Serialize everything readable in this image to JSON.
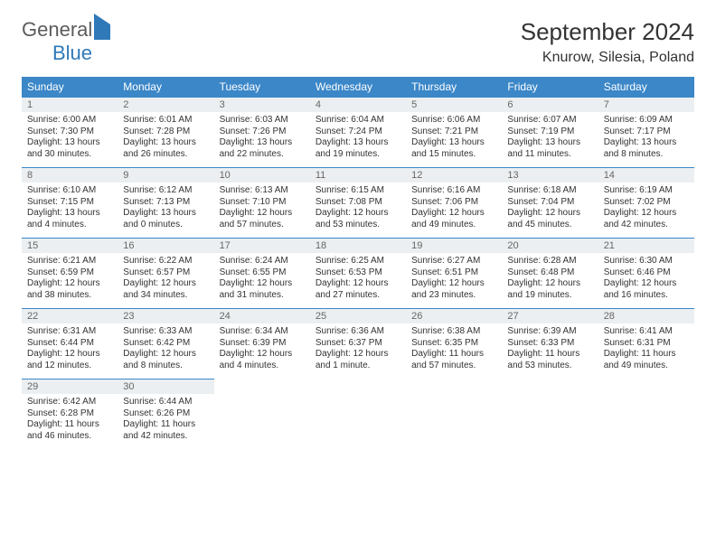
{
  "logo": {
    "part1": "General",
    "part2": "Blue"
  },
  "title": "September 2024",
  "location": "Knurow, Silesia, Poland",
  "colors": {
    "header_bg": "#3b87c8",
    "header_text": "#ffffff",
    "daynum_bg": "#eceff1",
    "daynum_text": "#666666",
    "body_text": "#333333",
    "rule": "#3b87c8",
    "logo_gray": "#5c5c5c",
    "logo_blue": "#2f79b9"
  },
  "weekdays": [
    "Sunday",
    "Monday",
    "Tuesday",
    "Wednesday",
    "Thursday",
    "Friday",
    "Saturday"
  ],
  "days": [
    {
      "n": "1",
      "rise": "Sunrise: 6:00 AM",
      "set": "Sunset: 7:30 PM",
      "dl": "Daylight: 13 hours and 30 minutes."
    },
    {
      "n": "2",
      "rise": "Sunrise: 6:01 AM",
      "set": "Sunset: 7:28 PM",
      "dl": "Daylight: 13 hours and 26 minutes."
    },
    {
      "n": "3",
      "rise": "Sunrise: 6:03 AM",
      "set": "Sunset: 7:26 PM",
      "dl": "Daylight: 13 hours and 22 minutes."
    },
    {
      "n": "4",
      "rise": "Sunrise: 6:04 AM",
      "set": "Sunset: 7:24 PM",
      "dl": "Daylight: 13 hours and 19 minutes."
    },
    {
      "n": "5",
      "rise": "Sunrise: 6:06 AM",
      "set": "Sunset: 7:21 PM",
      "dl": "Daylight: 13 hours and 15 minutes."
    },
    {
      "n": "6",
      "rise": "Sunrise: 6:07 AM",
      "set": "Sunset: 7:19 PM",
      "dl": "Daylight: 13 hours and 11 minutes."
    },
    {
      "n": "7",
      "rise": "Sunrise: 6:09 AM",
      "set": "Sunset: 7:17 PM",
      "dl": "Daylight: 13 hours and 8 minutes."
    },
    {
      "n": "8",
      "rise": "Sunrise: 6:10 AM",
      "set": "Sunset: 7:15 PM",
      "dl": "Daylight: 13 hours and 4 minutes."
    },
    {
      "n": "9",
      "rise": "Sunrise: 6:12 AM",
      "set": "Sunset: 7:13 PM",
      "dl": "Daylight: 13 hours and 0 minutes."
    },
    {
      "n": "10",
      "rise": "Sunrise: 6:13 AM",
      "set": "Sunset: 7:10 PM",
      "dl": "Daylight: 12 hours and 57 minutes."
    },
    {
      "n": "11",
      "rise": "Sunrise: 6:15 AM",
      "set": "Sunset: 7:08 PM",
      "dl": "Daylight: 12 hours and 53 minutes."
    },
    {
      "n": "12",
      "rise": "Sunrise: 6:16 AM",
      "set": "Sunset: 7:06 PM",
      "dl": "Daylight: 12 hours and 49 minutes."
    },
    {
      "n": "13",
      "rise": "Sunrise: 6:18 AM",
      "set": "Sunset: 7:04 PM",
      "dl": "Daylight: 12 hours and 45 minutes."
    },
    {
      "n": "14",
      "rise": "Sunrise: 6:19 AM",
      "set": "Sunset: 7:02 PM",
      "dl": "Daylight: 12 hours and 42 minutes."
    },
    {
      "n": "15",
      "rise": "Sunrise: 6:21 AM",
      "set": "Sunset: 6:59 PM",
      "dl": "Daylight: 12 hours and 38 minutes."
    },
    {
      "n": "16",
      "rise": "Sunrise: 6:22 AM",
      "set": "Sunset: 6:57 PM",
      "dl": "Daylight: 12 hours and 34 minutes."
    },
    {
      "n": "17",
      "rise": "Sunrise: 6:24 AM",
      "set": "Sunset: 6:55 PM",
      "dl": "Daylight: 12 hours and 31 minutes."
    },
    {
      "n": "18",
      "rise": "Sunrise: 6:25 AM",
      "set": "Sunset: 6:53 PM",
      "dl": "Daylight: 12 hours and 27 minutes."
    },
    {
      "n": "19",
      "rise": "Sunrise: 6:27 AM",
      "set": "Sunset: 6:51 PM",
      "dl": "Daylight: 12 hours and 23 minutes."
    },
    {
      "n": "20",
      "rise": "Sunrise: 6:28 AM",
      "set": "Sunset: 6:48 PM",
      "dl": "Daylight: 12 hours and 19 minutes."
    },
    {
      "n": "21",
      "rise": "Sunrise: 6:30 AM",
      "set": "Sunset: 6:46 PM",
      "dl": "Daylight: 12 hours and 16 minutes."
    },
    {
      "n": "22",
      "rise": "Sunrise: 6:31 AM",
      "set": "Sunset: 6:44 PM",
      "dl": "Daylight: 12 hours and 12 minutes."
    },
    {
      "n": "23",
      "rise": "Sunrise: 6:33 AM",
      "set": "Sunset: 6:42 PM",
      "dl": "Daylight: 12 hours and 8 minutes."
    },
    {
      "n": "24",
      "rise": "Sunrise: 6:34 AM",
      "set": "Sunset: 6:39 PM",
      "dl": "Daylight: 12 hours and 4 minutes."
    },
    {
      "n": "25",
      "rise": "Sunrise: 6:36 AM",
      "set": "Sunset: 6:37 PM",
      "dl": "Daylight: 12 hours and 1 minute."
    },
    {
      "n": "26",
      "rise": "Sunrise: 6:38 AM",
      "set": "Sunset: 6:35 PM",
      "dl": "Daylight: 11 hours and 57 minutes."
    },
    {
      "n": "27",
      "rise": "Sunrise: 6:39 AM",
      "set": "Sunset: 6:33 PM",
      "dl": "Daylight: 11 hours and 53 minutes."
    },
    {
      "n": "28",
      "rise": "Sunrise: 6:41 AM",
      "set": "Sunset: 6:31 PM",
      "dl": "Daylight: 11 hours and 49 minutes."
    },
    {
      "n": "29",
      "rise": "Sunrise: 6:42 AM",
      "set": "Sunset: 6:28 PM",
      "dl": "Daylight: 11 hours and 46 minutes."
    },
    {
      "n": "30",
      "rise": "Sunrise: 6:44 AM",
      "set": "Sunset: 6:26 PM",
      "dl": "Daylight: 11 hours and 42 minutes."
    }
  ]
}
